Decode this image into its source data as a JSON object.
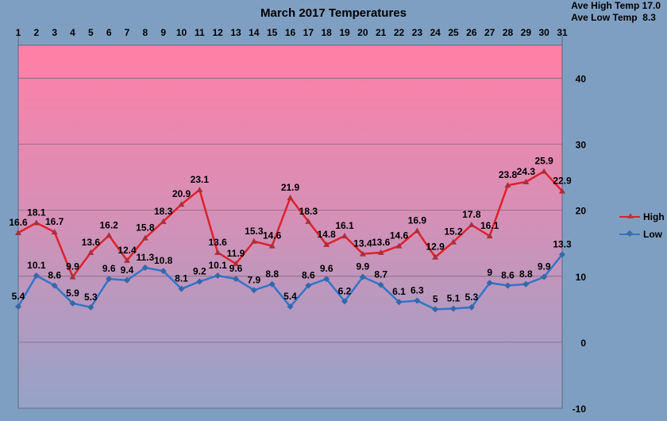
{
  "chart_data": {
    "type": "line",
    "title": "March 2017 Temperatures",
    "summary": [
      {
        "label": "Ave High Temp",
        "value": "17.0"
      },
      {
        "label": "Ave Low Temp",
        "value": "8.3"
      }
    ],
    "x": [
      1,
      2,
      3,
      4,
      5,
      6,
      7,
      8,
      9,
      10,
      11,
      12,
      13,
      14,
      15,
      16,
      17,
      18,
      19,
      20,
      21,
      22,
      23,
      24,
      25,
      26,
      27,
      28,
      29,
      30,
      31
    ],
    "ylim": [
      -10,
      45
    ],
    "yticks": [
      -10,
      0,
      10,
      20,
      30,
      40
    ],
    "grid": true,
    "legend_position": "right",
    "series": [
      {
        "name": "High",
        "color": "#e0202a",
        "marker": "triangle",
        "values": [
          16.6,
          18.1,
          16.7,
          9.9,
          13.6,
          16.2,
          12.4,
          15.8,
          18.3,
          20.9,
          23.1,
          13.6,
          11.9,
          15.3,
          14.6,
          21.9,
          18.3,
          14.8,
          16.1,
          13.4,
          13.6,
          14.6,
          16.9,
          12.9,
          15.2,
          17.8,
          16.1,
          23.8,
          24.3,
          25.9,
          22.9
        ]
      },
      {
        "name": "Low",
        "color": "#2f76c9",
        "marker": "diamond",
        "values": [
          5.4,
          10.1,
          8.6,
          5.9,
          5.3,
          9.6,
          9.4,
          11.3,
          10.8,
          8.1,
          9.2,
          10.1,
          9.6,
          7.9,
          8.8,
          5.4,
          8.6,
          9.6,
          6.2,
          9.9,
          8.7,
          6.1,
          6.3,
          5,
          5.1,
          5.3,
          9,
          8.6,
          8.8,
          9.9,
          13.3
        ]
      }
    ]
  }
}
